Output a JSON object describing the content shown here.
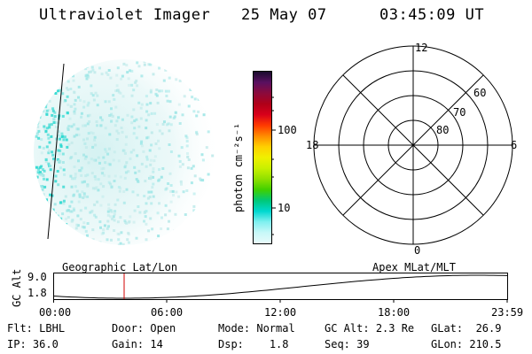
{
  "header": {
    "title": "Ultraviolet Imager",
    "date": "25 May 07",
    "time": "03:45:09 UT"
  },
  "colorbar": {
    "unit_label": "photon cm⁻²s⁻¹",
    "ticks": [
      "100",
      "10"
    ],
    "colors": [
      "#1a0b2e",
      "#5a1060",
      "#8b0a3c",
      "#b00018",
      "#d8001a",
      "#ff3a00",
      "#ff8c00",
      "#ffd000",
      "#f0f000",
      "#c8f000",
      "#90e000",
      "#40d000",
      "#00c878",
      "#00d8d0",
      "#80f0f0",
      "#c8f8f8",
      "#e8fafa"
    ]
  },
  "polar_plot": {
    "mlt_labels": {
      "top": "12",
      "left": "18",
      "right": "6",
      "bottom": "0"
    },
    "lat_labels": [
      "60",
      "70",
      "80"
    ]
  },
  "timeline": {
    "y_title": "GC Alt",
    "y_ticks": [
      "9.0",
      "1.8"
    ],
    "left_label": "Geographic Lat/Lon",
    "right_label": "Apex MLat/MLT",
    "x_ticks": [
      "00:00",
      "06:00",
      "12:00",
      "18:00",
      "23:59"
    ],
    "marker_time": "03:45"
  },
  "info": {
    "row1": [
      {
        "label": "Flt:",
        "value": "LBHL"
      },
      {
        "label": "Door:",
        "value": "Open"
      },
      {
        "label": "Mode:",
        "value": "Normal"
      },
      {
        "label": "GC Alt:",
        "value": "2.3 Re"
      },
      {
        "label": "GLat:",
        "value": "26.9"
      }
    ],
    "row2": [
      {
        "label": "IP:",
        "value": "36.0"
      },
      {
        "label": "Gain:",
        "value": "14"
      },
      {
        "label": "Dsp:",
        "value": "1.8"
      },
      {
        "label": "Seq:",
        "value": "39"
      },
      {
        "label": "GLon:",
        "value": "210.5"
      }
    ]
  },
  "colors": {
    "marker": "#d00000",
    "aurora": "#2ad8d0",
    "glow": "#c8eeee"
  }
}
